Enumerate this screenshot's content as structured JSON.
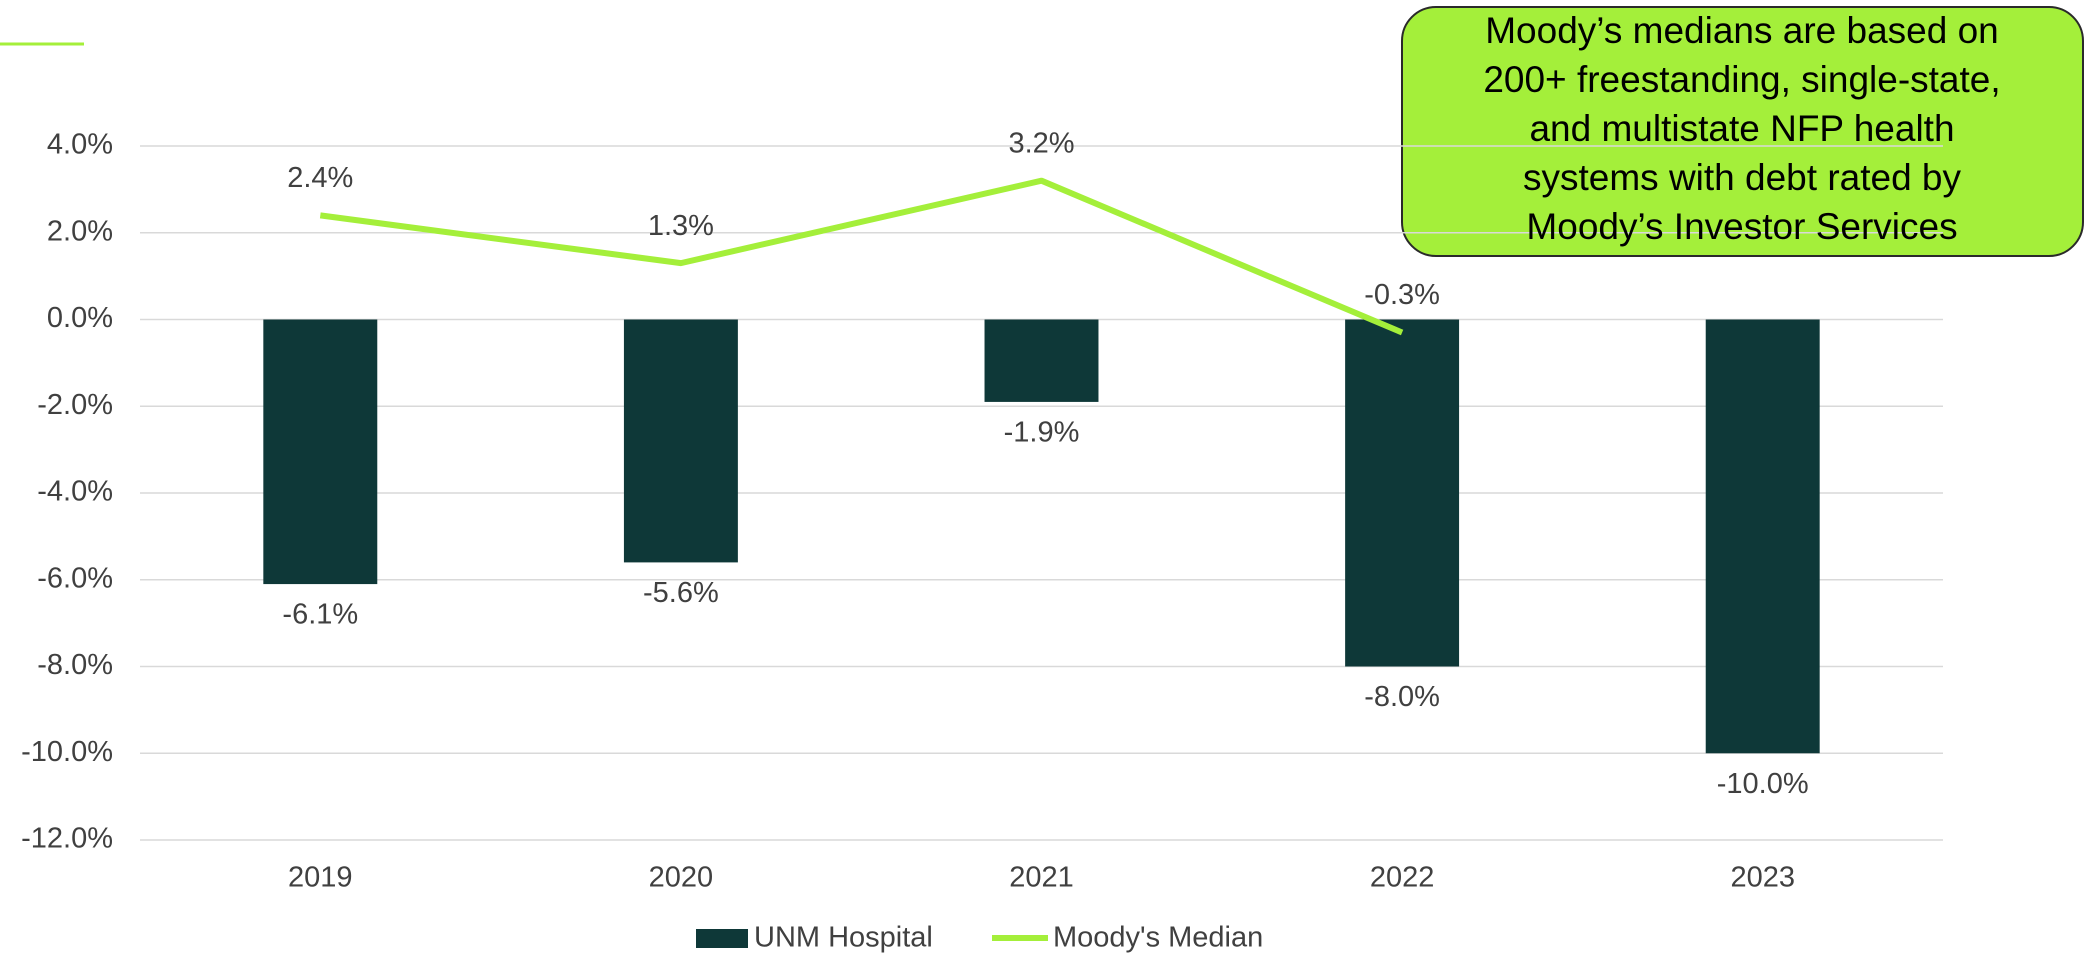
{
  "chart_data": {
    "type": "bar",
    "categories": [
      "2019",
      "2020",
      "2021",
      "2022",
      "2023"
    ],
    "series": [
      {
        "name": "UNM Hospital",
        "type": "bar",
        "color": "#0e3838",
        "values": [
          -6.1,
          -5.6,
          -1.9,
          -8.0,
          -10.0
        ],
        "value_labels": [
          "-6.1%",
          "-5.6%",
          "-1.9%",
          "-8.0%",
          "-10.0%"
        ]
      },
      {
        "name": "Moody's Median",
        "type": "line",
        "color": "#a4ef3a",
        "values": [
          2.4,
          1.3,
          3.2,
          -0.3,
          null
        ],
        "value_labels": [
          "2.4%",
          "1.3%",
          "3.2%",
          "-0.3%",
          null
        ]
      }
    ],
    "ylim": [
      -12,
      4
    ],
    "yticks": [
      {
        "value": 4,
        "label": "4.0%"
      },
      {
        "value": 2,
        "label": "2.0%"
      },
      {
        "value": 0,
        "label": "0.0%"
      },
      {
        "value": -2,
        "label": "-2.0%"
      },
      {
        "value": -4,
        "label": "-4.0%"
      },
      {
        "value": -6,
        "label": "-6.0%"
      },
      {
        "value": -8,
        "label": "-8.0%"
      },
      {
        "value": -10,
        "label": "-10.0%"
      },
      {
        "value": -12,
        "label": "-12.0%"
      }
    ],
    "grid": true,
    "legend": "bottom",
    "annotation": [
      "Moody’s medians are based on",
      "200+ freestanding, single-state,",
      "and multistate NFP health",
      "systems with debt rated by",
      "Moody’s Investor Services"
    ]
  }
}
